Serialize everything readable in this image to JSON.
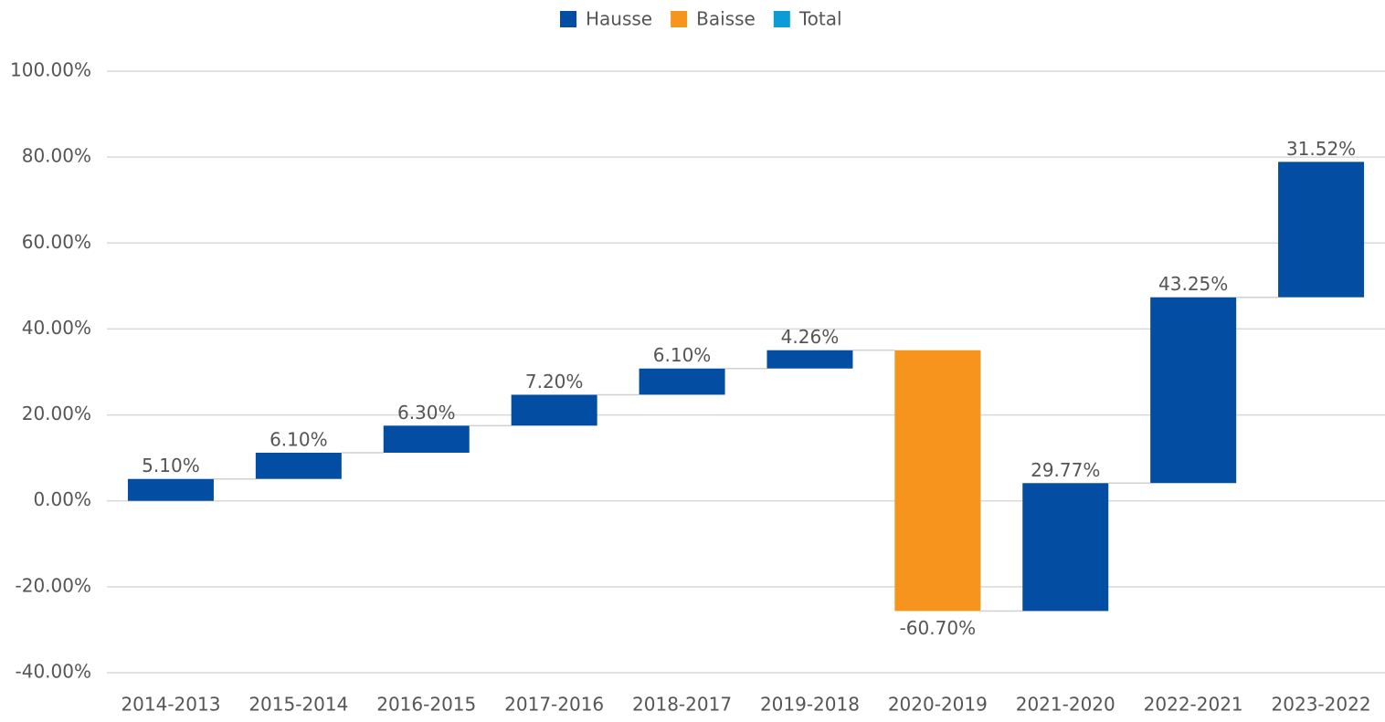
{
  "chart_data": {
    "type": "waterfall",
    "legend": [
      {
        "name": "Hausse",
        "color": "#034ea2"
      },
      {
        "name": "Baisse",
        "color": "#f7941d"
      },
      {
        "name": "Total",
        "color": "#0b9bd7"
      }
    ],
    "categories": [
      "2014-2013",
      "2015-2014",
      "2016-2015",
      "2017-2016",
      "2018-2017",
      "2019-2018",
      "2020-2019",
      "2021-2020",
      "2022-2021",
      "2023-2022"
    ],
    "values": [
      5.1,
      6.1,
      6.3,
      7.2,
      6.1,
      4.26,
      -60.7,
      29.77,
      43.25,
      31.52
    ],
    "value_labels": [
      "5.10%",
      "6.10%",
      "6.30%",
      "7.20%",
      "6.10%",
      "4.26%",
      "-60.70%",
      "29.77%",
      "43.25%",
      "31.52%"
    ],
    "ylim": [
      -40,
      100
    ],
    "yticks": [
      {
        "value": -40,
        "label": "-40.00%"
      },
      {
        "value": -20,
        "label": "-20.00%"
      },
      {
        "value": 0,
        "label": "0.00%"
      },
      {
        "value": 20,
        "label": "20.00%"
      },
      {
        "value": 40,
        "label": "40.00%"
      },
      {
        "value": 60,
        "label": "60.00%"
      },
      {
        "value": 80,
        "label": "80.00%"
      },
      {
        "value": 100,
        "label": "100.00%"
      }
    ],
    "grid": true
  }
}
